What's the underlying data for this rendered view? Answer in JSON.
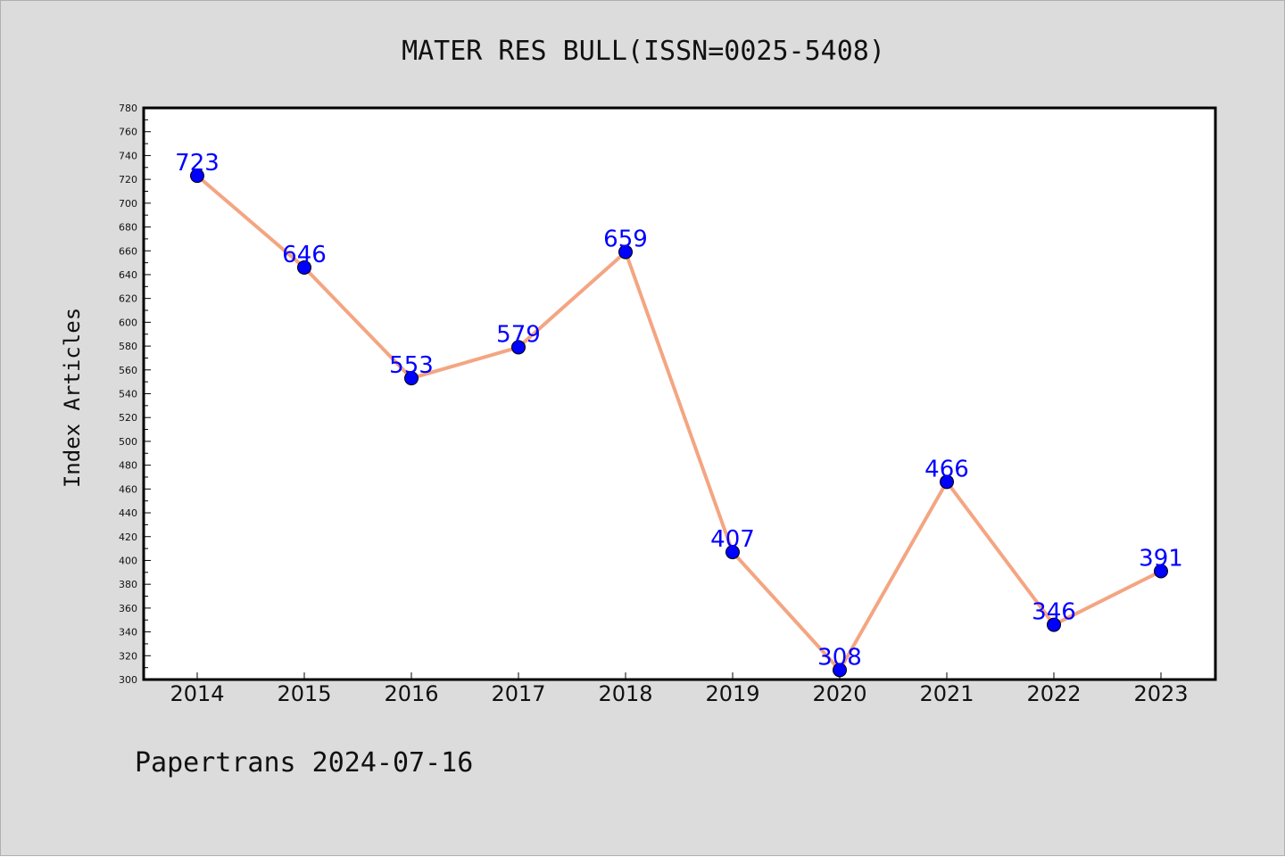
{
  "chart_data": {
    "type": "line",
    "title": "MATER RES BULL(ISSN=0025-5408)",
    "xlabel": "",
    "ylabel": "Index Articles",
    "categories": [
      "2014",
      "2015",
      "2016",
      "2017",
      "2018",
      "2019",
      "2020",
      "2021",
      "2022",
      "2023"
    ],
    "series": [
      {
        "values": [
          723,
          646,
          553,
          579,
          659,
          407,
          308,
          466,
          346,
          391
        ],
        "labels": [
          "723",
          "646",
          "553",
          "579",
          "659",
          "407",
          "308",
          "466",
          "346",
          "391"
        ]
      }
    ],
    "ylim": [
      300,
      780
    ],
    "yticks": [
      "300",
      "320",
      "340",
      "360",
      "380",
      "400",
      "420",
      "440",
      "460",
      "480",
      "500",
      "520",
      "540",
      "560",
      "580",
      "600",
      "620",
      "640",
      "660",
      "680",
      "700",
      "720",
      "740",
      "760",
      "780"
    ],
    "grid": false,
    "line_color": "#f4a582",
    "marker_color": "#0000ff",
    "label_color": "#0000ff",
    "background": "#dcdcdc",
    "plot_background": "#ffffff"
  },
  "footer": "Papertrans 2024-07-16"
}
